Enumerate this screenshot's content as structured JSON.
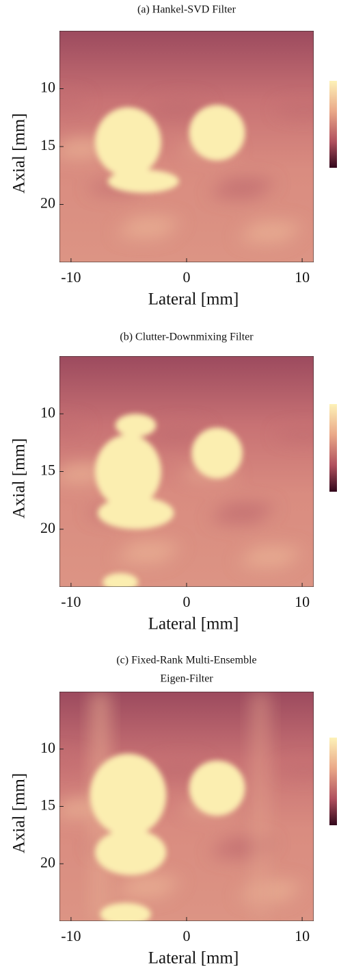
{
  "chart_data": [
    {
      "type": "heatmap",
      "title": "(a) Hankel-SVD Filter",
      "xlabel": "Lateral [mm]",
      "ylabel": "Axial [mm]",
      "xlim": [
        -11,
        11
      ],
      "ylim": [
        25,
        5
      ],
      "xticks": [
        -10,
        0,
        10
      ],
      "yticks": [
        10,
        15,
        20
      ],
      "colorbar": true
    },
    {
      "type": "heatmap",
      "title": "(b) Clutter-Downmixing Filter",
      "xlabel": "Lateral [mm]",
      "ylabel": "Axial [mm]",
      "xlim": [
        -11,
        11
      ],
      "ylim": [
        25,
        5
      ],
      "xticks": [
        -10,
        0,
        10
      ],
      "yticks": [
        10,
        15,
        20
      ],
      "colorbar": true
    },
    {
      "type": "heatmap",
      "title": [
        "(c) Fixed-Rank Multi-Ensemble",
        "Eigen-Filter"
      ],
      "xlabel": "Lateral [mm]",
      "ylabel": "Axial [mm]",
      "xlim": [
        -11,
        11
      ],
      "ylim": [
        25,
        5
      ],
      "xticks": [
        -10,
        0,
        10
      ],
      "yticks": [
        10,
        15,
        20
      ],
      "colorbar": true
    }
  ]
}
